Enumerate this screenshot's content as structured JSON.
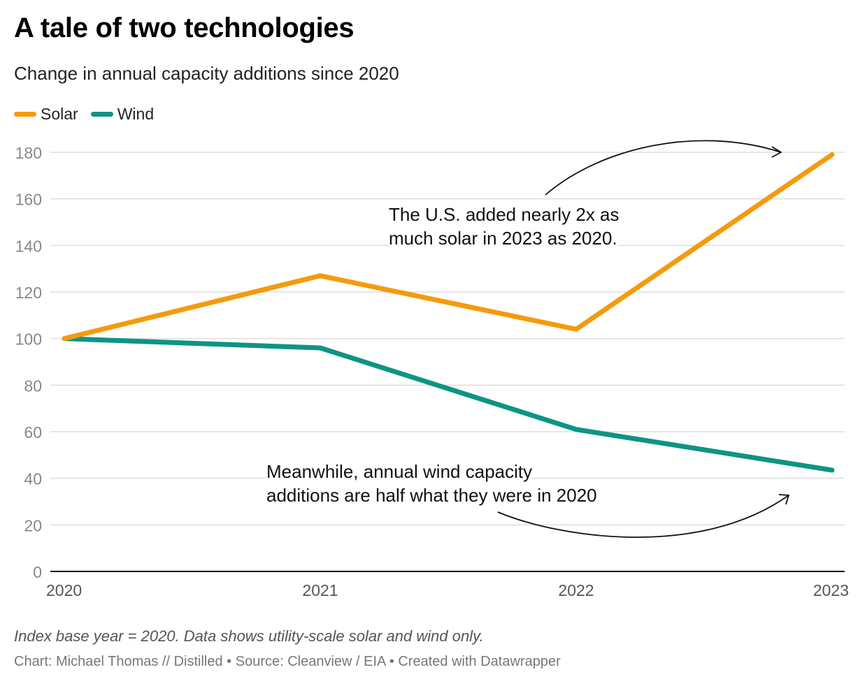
{
  "header": {
    "title": "A tale of two technologies",
    "subtitle": "Change in annual capacity additions since 2020"
  },
  "footer": {
    "note": "Index base year = 2020. Data shows utility-scale solar and wind only.",
    "credit": "Chart: Michael Thomas // Distilled • Source: Cleanview / EIA • Created with Datawrapper"
  },
  "annotations": {
    "solar": [
      "The U.S. added nearly 2x as",
      "much solar in 2023 as 2020."
    ],
    "wind": [
      "Meanwhile, annual wind capacity",
      "additions are half what they were in 2020"
    ]
  },
  "colors": {
    "solar": "#f59a0d",
    "wind": "#0d9484",
    "grid": "#dddddd",
    "axis": "#000000",
    "tick_label": "#888888"
  },
  "chart_data": {
    "type": "line",
    "title": "A tale of two technologies",
    "subtitle": "Change in annual capacity additions since 2020",
    "x": [
      "2020",
      "2021",
      "2022",
      "2023"
    ],
    "series": [
      {
        "name": "Solar",
        "values": [
          100,
          127,
          104,
          179
        ]
      },
      {
        "name": "Wind",
        "values": [
          100,
          96,
          61,
          43.5
        ]
      }
    ],
    "ylim": [
      0,
      180
    ],
    "yticks": [
      0,
      20,
      40,
      60,
      80,
      100,
      120,
      140,
      160,
      180
    ],
    "xlabel": "",
    "ylabel": "",
    "grid": true,
    "legend_position": "top-left"
  }
}
